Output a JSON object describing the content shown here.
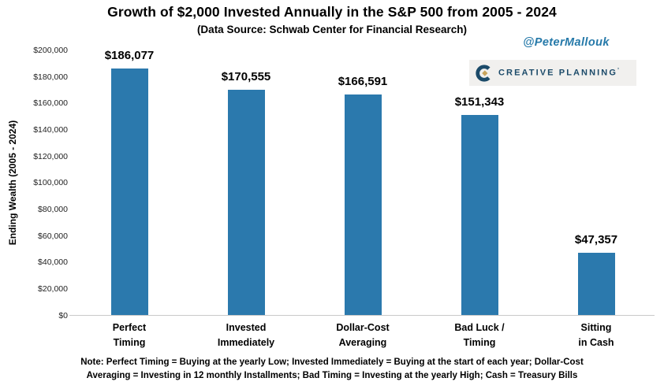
{
  "header": {
    "title": "Growth of $2,000 Invested Annually in the S&P 500 from 2005 - 2024",
    "subtitle": "(Data Source: Schwab Center for Financial Research)"
  },
  "branding": {
    "handle": "@PeterMallouk",
    "handle_color": "#2579A9",
    "logo_text": "CREATIVE PLANNING",
    "logo_trademark": "’",
    "logo_navy": "#1B4A69",
    "logo_gold": "#C8A45C"
  },
  "chart_data": {
    "type": "bar",
    "title": "Growth of $2,000 Invested Annually in the S&P 500 from 2005 - 2024",
    "subtitle": "(Data Source: Schwab Center for Financial Research)",
    "categories": [
      "Perfect\nTiming",
      "Invested\nImmediately",
      "Dollar-Cost\nAveraging",
      "Bad Luck /\nTiming",
      "Sitting\nin Cash"
    ],
    "values": [
      186077,
      170555,
      166591,
      151343,
      47357
    ],
    "value_labels": [
      "$186,077",
      "$170,555",
      "$166,591",
      "$151,343",
      "$47,357"
    ],
    "xlabel": "",
    "ylabel": "Ending Wealth (2005 - 2024)",
    "ylim": [
      0,
      200000
    ],
    "y_ticks": [
      {
        "label": "$0",
        "value": 0
      },
      {
        "label": "$20,000",
        "value": 20000
      },
      {
        "label": "$40,000",
        "value": 40000
      },
      {
        "label": "$60,000",
        "value": 60000
      },
      {
        "label": "$80,000",
        "value": 80000
      },
      {
        "label": "$100,000",
        "value": 100000
      },
      {
        "label": "$120,000",
        "value": 120000
      },
      {
        "label": "$140,000",
        "value": 140000
      },
      {
        "label": "$160,000",
        "value": 160000
      },
      {
        "label": "$180,000",
        "value": 180000
      },
      {
        "label": "$200,000",
        "value": 200000
      }
    ],
    "bar_color": "#2B79AD",
    "axis_line_color": "#C9C9C9",
    "grid": false,
    "legend": "none"
  },
  "note": {
    "lines": [
      "Note: Perfect Timing = Buying at the yearly Low; Invested Immediately = Buying at the start of each year; Dollar-Cost",
      "Averaging = Investing in 12 monthly Installments; Bad Timing = Investing at the yearly High; Cash = Treasury Bills"
    ],
    "full_text": "Note: Perfect Timing = Buying at the yearly Low; Invested Immediately = Buying at the start of each year; Dollar-Cost Averaging = Investing in 12 monthly Installments; Bad Timing = Investing at the yearly High; Cash = Treasury Bills"
  }
}
